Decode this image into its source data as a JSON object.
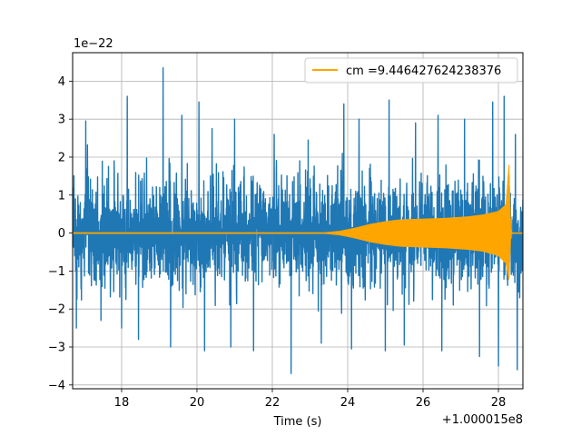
{
  "chart_data": {
    "type": "line",
    "xlabel": "Time (s)",
    "ylabel": "",
    "x_offset_label": "+1.000015e8",
    "y_scale_label": "1e−22",
    "xlim": [
      16.7,
      28.65
    ],
    "ylim": [
      -4.1,
      4.75
    ],
    "xticks": [
      18,
      20,
      22,
      24,
      26,
      28
    ],
    "yticks": [
      -4,
      -3,
      -2,
      -1,
      0,
      1,
      2,
      3,
      4
    ],
    "grid": true,
    "legend_position": "upper right",
    "series": [
      {
        "kind": "noise",
        "color": "#1f77b4",
        "x_range": [
          16.7,
          28.65
        ],
        "rms_band": 1.45,
        "peaks": [
          {
            "x": 17.05,
            "y": 2.95
          },
          {
            "x": 17.45,
            "y": 2.6
          },
          {
            "x": 18.15,
            "y": 3.6
          },
          {
            "x": 18.45,
            "y": 3.1
          },
          {
            "x": 19.1,
            "y": 4.35
          },
          {
            "x": 19.6,
            "y": 3.1
          },
          {
            "x": 20.05,
            "y": 3.45
          },
          {
            "x": 20.4,
            "y": 2.75
          },
          {
            "x": 21.0,
            "y": 3.0
          },
          {
            "x": 22.05,
            "y": 2.6
          },
          {
            "x": 22.95,
            "y": 2.45
          },
          {
            "x": 23.9,
            "y": 3.4
          },
          {
            "x": 24.3,
            "y": 3.0
          },
          {
            "x": 25.1,
            "y": 3.5
          },
          {
            "x": 25.8,
            "y": 2.9
          },
          {
            "x": 26.4,
            "y": 3.1
          },
          {
            "x": 27.1,
            "y": 3.0
          },
          {
            "x": 27.85,
            "y": 3.45
          },
          {
            "x": 28.15,
            "y": 3.6
          },
          {
            "x": 28.45,
            "y": 2.6
          }
        ],
        "troughs": [
          {
            "x": 16.8,
            "y": -2.5
          },
          {
            "x": 17.45,
            "y": -2.3
          },
          {
            "x": 18.0,
            "y": -2.5
          },
          {
            "x": 18.45,
            "y": -2.8
          },
          {
            "x": 19.3,
            "y": -3.0
          },
          {
            "x": 20.2,
            "y": -3.1
          },
          {
            "x": 20.9,
            "y": -3.0
          },
          {
            "x": 21.5,
            "y": -3.1
          },
          {
            "x": 22.5,
            "y": -3.7
          },
          {
            "x": 23.3,
            "y": -2.9
          },
          {
            "x": 24.1,
            "y": -3.05
          },
          {
            "x": 25.0,
            "y": -3.1
          },
          {
            "x": 25.5,
            "y": -2.95
          },
          {
            "x": 26.5,
            "y": -3.1
          },
          {
            "x": 27.5,
            "y": -3.25
          },
          {
            "x": 28.0,
            "y": -3.5
          },
          {
            "x": 28.5,
            "y": -3.6
          }
        ]
      },
      {
        "kind": "chirp",
        "name": "cm =9.446427624238376",
        "color": "#ffa500",
        "envelope": {
          "x": [
            16.7,
            23.4,
            23.8,
            24.2,
            24.6,
            25.0,
            25.4,
            26.0,
            26.6,
            27.2,
            27.6,
            28.0,
            28.2,
            28.28,
            28.33,
            28.65
          ],
          "upper": [
            0.02,
            0.02,
            0.06,
            0.14,
            0.24,
            0.31,
            0.36,
            0.38,
            0.4,
            0.44,
            0.49,
            0.58,
            0.75,
            1.8,
            0.0,
            0.0
          ],
          "lower": [
            -0.02,
            -0.02,
            -0.06,
            -0.14,
            -0.24,
            -0.31,
            -0.36,
            -0.38,
            -0.4,
            -0.44,
            -0.49,
            -0.6,
            -0.8,
            -1.25,
            0.0,
            0.0
          ]
        }
      }
    ]
  }
}
